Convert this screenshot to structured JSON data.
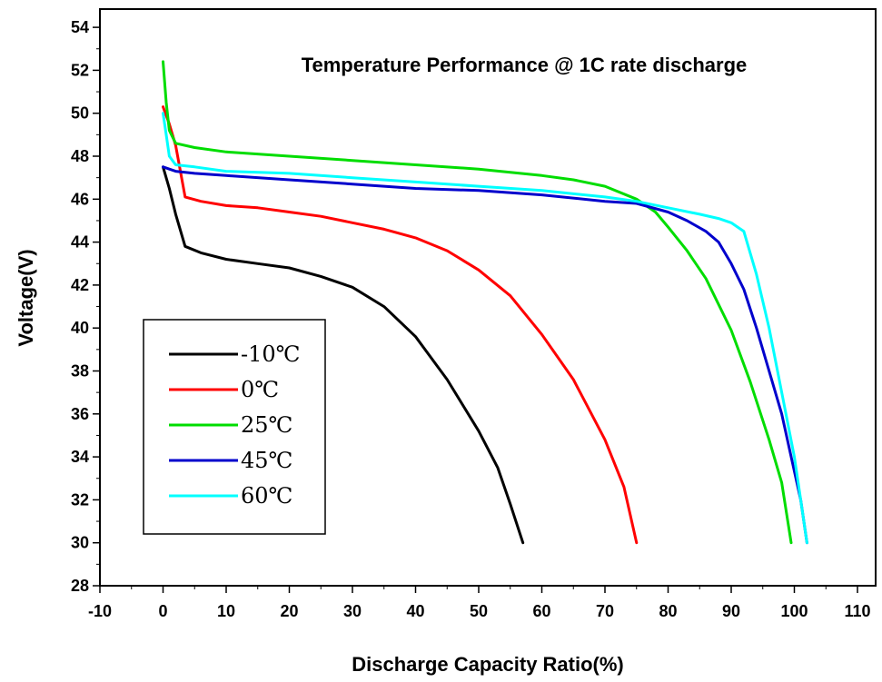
{
  "chart_data": {
    "type": "line",
    "title": "Temperature Performance @ 1C rate discharge",
    "xlabel": "Discharge Capacity Ratio(%)",
    "ylabel": "Voltage(V)",
    "xlim": [
      -10,
      115
    ],
    "ylim": [
      28,
      55
    ],
    "xticks": [
      -10,
      0,
      10,
      20,
      30,
      40,
      50,
      60,
      70,
      80,
      90,
      100,
      110
    ],
    "yticks": [
      28,
      30,
      32,
      34,
      36,
      38,
      40,
      42,
      44,
      46,
      48,
      50,
      52,
      54
    ],
    "legend_position": "lower-left",
    "grid": false,
    "series": [
      {
        "name": "-10℃",
        "color": "#000000",
        "points": [
          [
            0,
            47.5
          ],
          [
            1,
            46.5
          ],
          [
            2,
            45.3
          ],
          [
            3.5,
            43.8
          ],
          [
            6,
            43.5
          ],
          [
            10,
            43.2
          ],
          [
            15,
            43.0
          ],
          [
            20,
            42.8
          ],
          [
            25,
            42.4
          ],
          [
            30,
            41.9
          ],
          [
            35,
            41.0
          ],
          [
            40,
            39.6
          ],
          [
            45,
            37.6
          ],
          [
            50,
            35.2
          ],
          [
            53,
            33.5
          ],
          [
            55,
            31.8
          ],
          [
            57,
            30.0
          ]
        ]
      },
      {
        "name": "0℃",
        "color": "#ff0000",
        "points": [
          [
            0,
            50.3
          ],
          [
            1,
            49.5
          ],
          [
            2,
            48.5
          ],
          [
            3.5,
            46.1
          ],
          [
            6,
            45.9
          ],
          [
            10,
            45.7
          ],
          [
            15,
            45.6
          ],
          [
            20,
            45.4
          ],
          [
            25,
            45.2
          ],
          [
            30,
            44.9
          ],
          [
            35,
            44.6
          ],
          [
            40,
            44.2
          ],
          [
            45,
            43.6
          ],
          [
            50,
            42.7
          ],
          [
            55,
            41.5
          ],
          [
            60,
            39.7
          ],
          [
            65,
            37.6
          ],
          [
            70,
            34.8
          ],
          [
            73,
            32.6
          ],
          [
            75,
            30.0
          ]
        ]
      },
      {
        "name": "25℃",
        "color": "#00dd00",
        "points": [
          [
            0,
            52.4
          ],
          [
            0.5,
            50.5
          ],
          [
            1,
            49.2
          ],
          [
            2,
            48.6
          ],
          [
            5,
            48.4
          ],
          [
            10,
            48.2
          ],
          [
            20,
            48.0
          ],
          [
            30,
            47.8
          ],
          [
            40,
            47.6
          ],
          [
            50,
            47.4
          ],
          [
            60,
            47.1
          ],
          [
            65,
            46.9
          ],
          [
            70,
            46.6
          ],
          [
            75,
            46.0
          ],
          [
            78,
            45.4
          ],
          [
            80,
            44.7
          ],
          [
            83,
            43.6
          ],
          [
            86,
            42.3
          ],
          [
            90,
            39.9
          ],
          [
            93,
            37.5
          ],
          [
            96,
            34.8
          ],
          [
            98,
            32.8
          ],
          [
            99.5,
            30.0
          ]
        ]
      },
      {
        "name": "45℃",
        "color": "#0000cc",
        "points": [
          [
            0,
            47.5
          ],
          [
            2,
            47.3
          ],
          [
            5,
            47.2
          ],
          [
            10,
            47.1
          ],
          [
            20,
            46.9
          ],
          [
            30,
            46.7
          ],
          [
            40,
            46.5
          ],
          [
            50,
            46.4
          ],
          [
            60,
            46.2
          ],
          [
            70,
            45.9
          ],
          [
            75,
            45.8
          ],
          [
            80,
            45.4
          ],
          [
            83,
            45.0
          ],
          [
            86,
            44.5
          ],
          [
            88,
            44.0
          ],
          [
            90,
            43.0
          ],
          [
            92,
            41.8
          ],
          [
            94,
            40.0
          ],
          [
            96,
            38.0
          ],
          [
            98,
            36.0
          ],
          [
            99.5,
            34.0
          ],
          [
            101,
            32.0
          ],
          [
            102,
            30.0
          ]
        ]
      },
      {
        "name": "60℃",
        "color": "#00ffff",
        "points": [
          [
            0,
            50.0
          ],
          [
            0.5,
            49.0
          ],
          [
            1,
            48.0
          ],
          [
            2,
            47.6
          ],
          [
            5,
            47.5
          ],
          [
            10,
            47.3
          ],
          [
            20,
            47.2
          ],
          [
            30,
            47.0
          ],
          [
            40,
            46.8
          ],
          [
            50,
            46.6
          ],
          [
            60,
            46.4
          ],
          [
            70,
            46.1
          ],
          [
            75,
            45.9
          ],
          [
            80,
            45.6
          ],
          [
            85,
            45.3
          ],
          [
            88,
            45.1
          ],
          [
            90,
            44.9
          ],
          [
            92,
            44.5
          ],
          [
            94,
            42.5
          ],
          [
            96,
            40.0
          ],
          [
            98,
            37.0
          ],
          [
            100,
            34.0
          ],
          [
            101,
            32.0
          ],
          [
            102,
            30.0
          ]
        ]
      }
    ]
  }
}
